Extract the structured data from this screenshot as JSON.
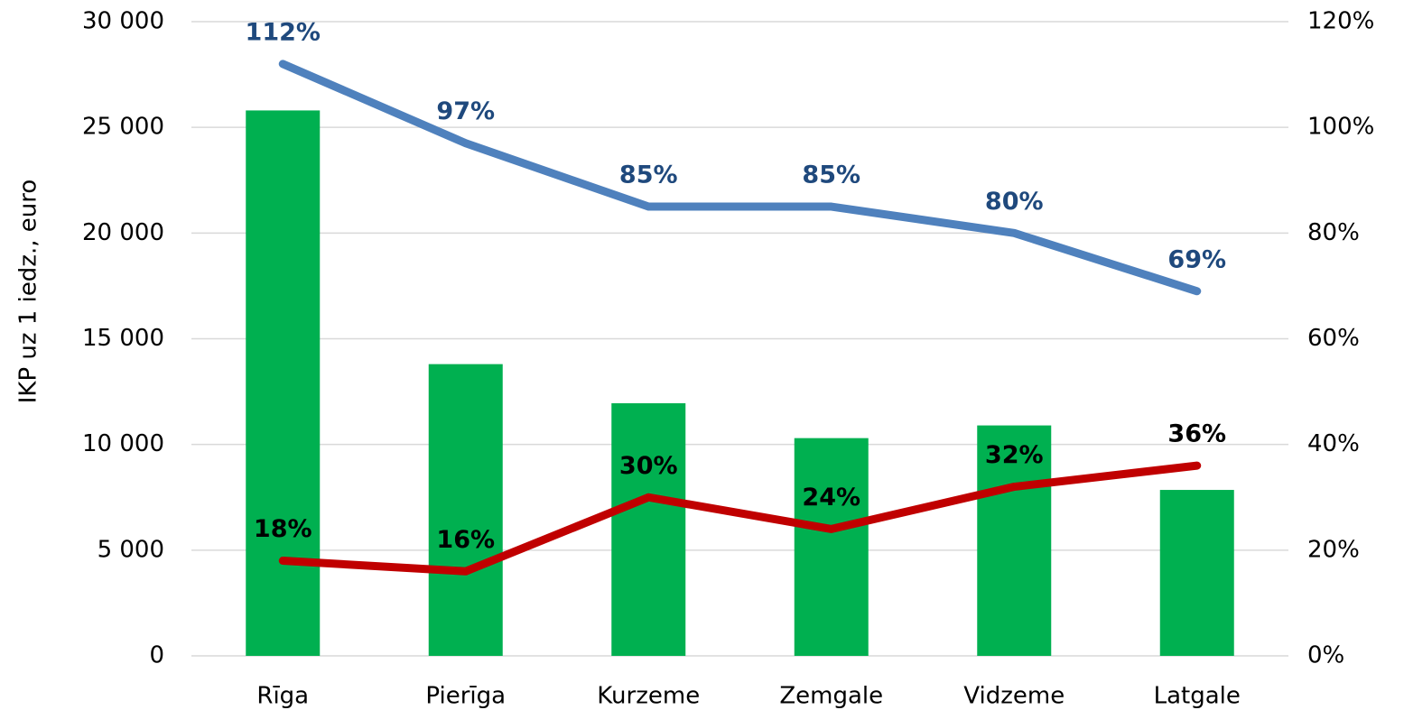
{
  "chart_data": {
    "type": "bar",
    "y_label": "IKP uz 1 iedz., euro",
    "categories": [
      "Rīga",
      "Pierīga",
      "Kurzeme",
      "Zemgale",
      "Vidzeme",
      "Latgale"
    ],
    "values": [
      25800,
      13800,
      11950,
      10300,
      10900,
      7850
    ],
    "color": "#00b050",
    "ylim": [
      0,
      30000
    ],
    "yticks": [
      0,
      {
        "value": 5000,
        "label": "5 000"
      },
      {
        "value": 10000,
        "label": "10 000"
      },
      {
        "value": 15000,
        "label": "15 000"
      },
      {
        "value": 20000,
        "label": "20 000"
      },
      {
        "value": 25000,
        "label": "25 000"
      },
      {
        "value": 30000,
        "label": "30 000"
      }
    ],
    "y2lim": [
      0,
      120
    ],
    "y2ticks": [
      {
        "value": 0,
        "label": "0%"
      },
      {
        "value": 20,
        "label": "20%"
      },
      {
        "value": 40,
        "label": "40%"
      },
      {
        "value": 60,
        "label": "60%"
      },
      {
        "value": 80,
        "label": "80%"
      },
      {
        "value": 100,
        "label": "100%"
      },
      {
        "value": 120,
        "label": "120%"
      }
    ],
    "grid": true,
    "series": [
      {
        "type": "line",
        "axis": "y2",
        "color": "#4f81bd",
        "label_color": "#1f497d",
        "values": [
          112,
          97,
          85,
          85,
          80,
          69
        ],
        "value_labels": [
          "112%",
          "97%",
          "85%",
          "85%",
          "80%",
          "69%"
        ]
      },
      {
        "type": "line",
        "axis": "y2",
        "color": "#c00000",
        "label_color": "#000000",
        "values": [
          18,
          16,
          30,
          24,
          32,
          36
        ],
        "value_labels": [
          "18%",
          "16%",
          "30%",
          "24%",
          "32%",
          "36%"
        ]
      }
    ]
  }
}
